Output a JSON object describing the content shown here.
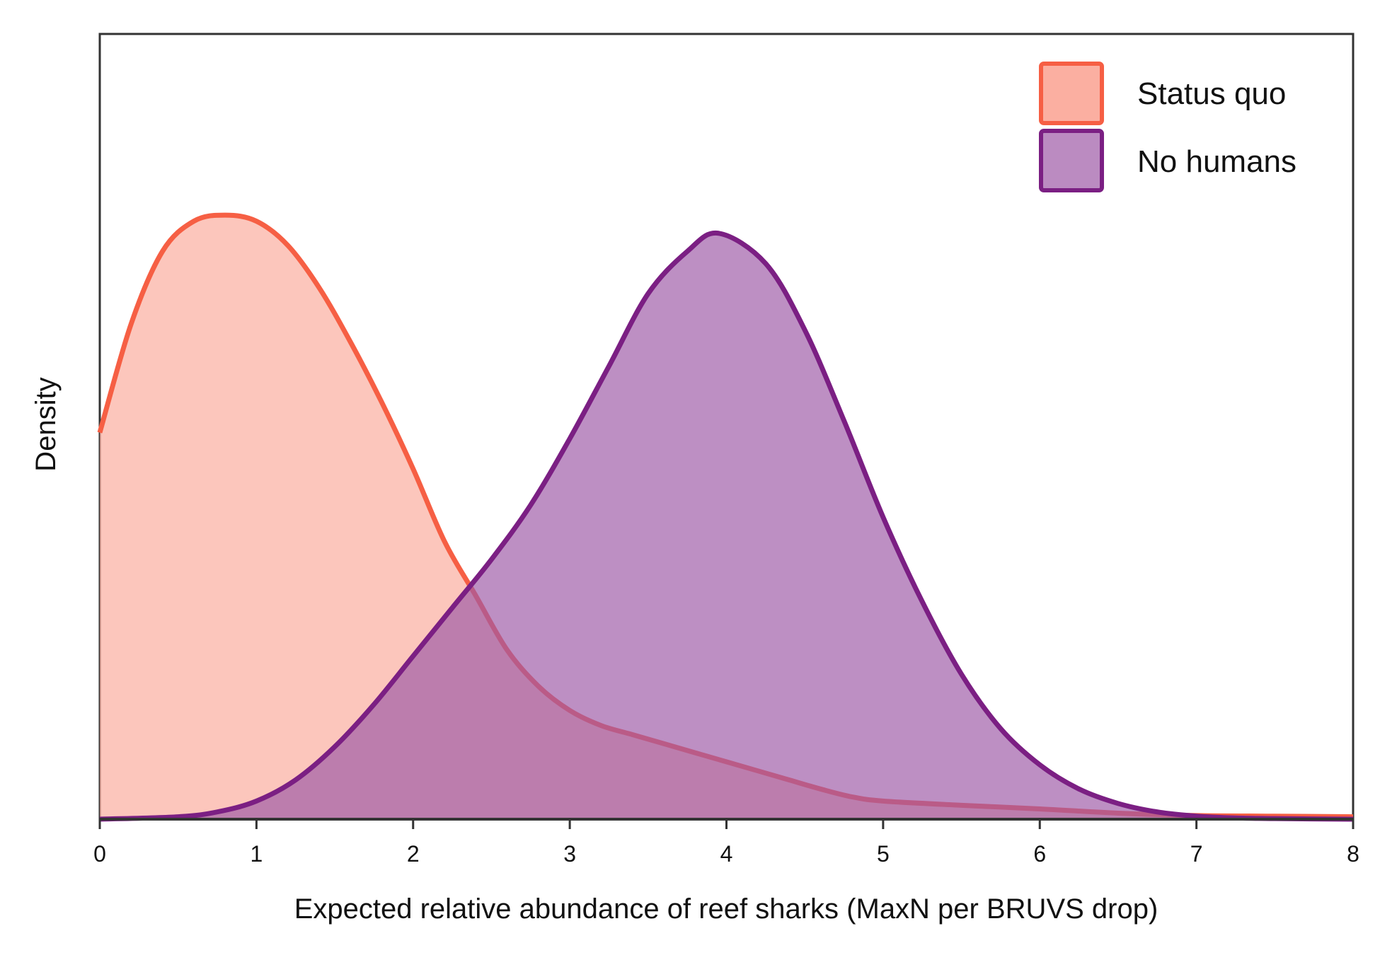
{
  "chart_data": {
    "type": "area",
    "title": "",
    "xlabel": "Expected relative abundance of reef sharks (MaxN per BRUVS drop)",
    "ylabel": "Density",
    "xlim": [
      0,
      8
    ],
    "ylim": [
      0,
      1.3
    ],
    "xticks": [
      "0",
      "1",
      "2",
      "3",
      "4",
      "5",
      "6",
      "7",
      "8"
    ],
    "show_y_ticks": false,
    "grid": false,
    "legend_position": "top-right",
    "series": [
      {
        "name": "Status quo",
        "stroke": "#f65f44",
        "fill": "#fbab9c",
        "x": [
          0,
          0.2,
          0.4,
          0.6,
          0.8,
          1.0,
          1.2,
          1.4,
          1.6,
          1.8,
          2.0,
          2.2,
          2.4,
          2.6,
          2.8,
          3.0,
          3.2,
          3.4,
          3.6,
          3.8,
          4.0,
          4.2,
          4.4,
          4.6,
          4.8,
          5.0,
          5.5,
          6.0,
          6.5,
          7.0,
          7.5,
          8.0
        ],
        "y": [
          0.64,
          0.82,
          0.94,
          0.99,
          1.0,
          0.99,
          0.95,
          0.88,
          0.79,
          0.69,
          0.58,
          0.46,
          0.37,
          0.28,
          0.22,
          0.18,
          0.155,
          0.14,
          0.125,
          0.11,
          0.095,
          0.08,
          0.065,
          0.05,
          0.037,
          0.03,
          0.023,
          0.017,
          0.01,
          0.006,
          0.005,
          0.004
        ]
      },
      {
        "name": "No humans",
        "stroke": "#7b1f83",
        "fill": "#9e5aa6",
        "x": [
          0,
          0.5,
          0.75,
          1.0,
          1.25,
          1.5,
          1.75,
          2.0,
          2.25,
          2.5,
          2.75,
          3.0,
          3.25,
          3.5,
          3.75,
          3.95,
          4.25,
          4.5,
          4.75,
          5.0,
          5.25,
          5.5,
          5.75,
          6.0,
          6.25,
          6.5,
          6.75,
          7.0,
          7.25,
          7.5,
          8.0
        ],
        "y": [
          0.0,
          0.004,
          0.012,
          0.03,
          0.065,
          0.12,
          0.19,
          0.27,
          0.35,
          0.43,
          0.52,
          0.63,
          0.75,
          0.87,
          0.94,
          0.97,
          0.92,
          0.81,
          0.66,
          0.5,
          0.36,
          0.24,
          0.15,
          0.09,
          0.05,
          0.026,
          0.012,
          0.005,
          0.002,
          0.001,
          0.0
        ]
      }
    ]
  }
}
